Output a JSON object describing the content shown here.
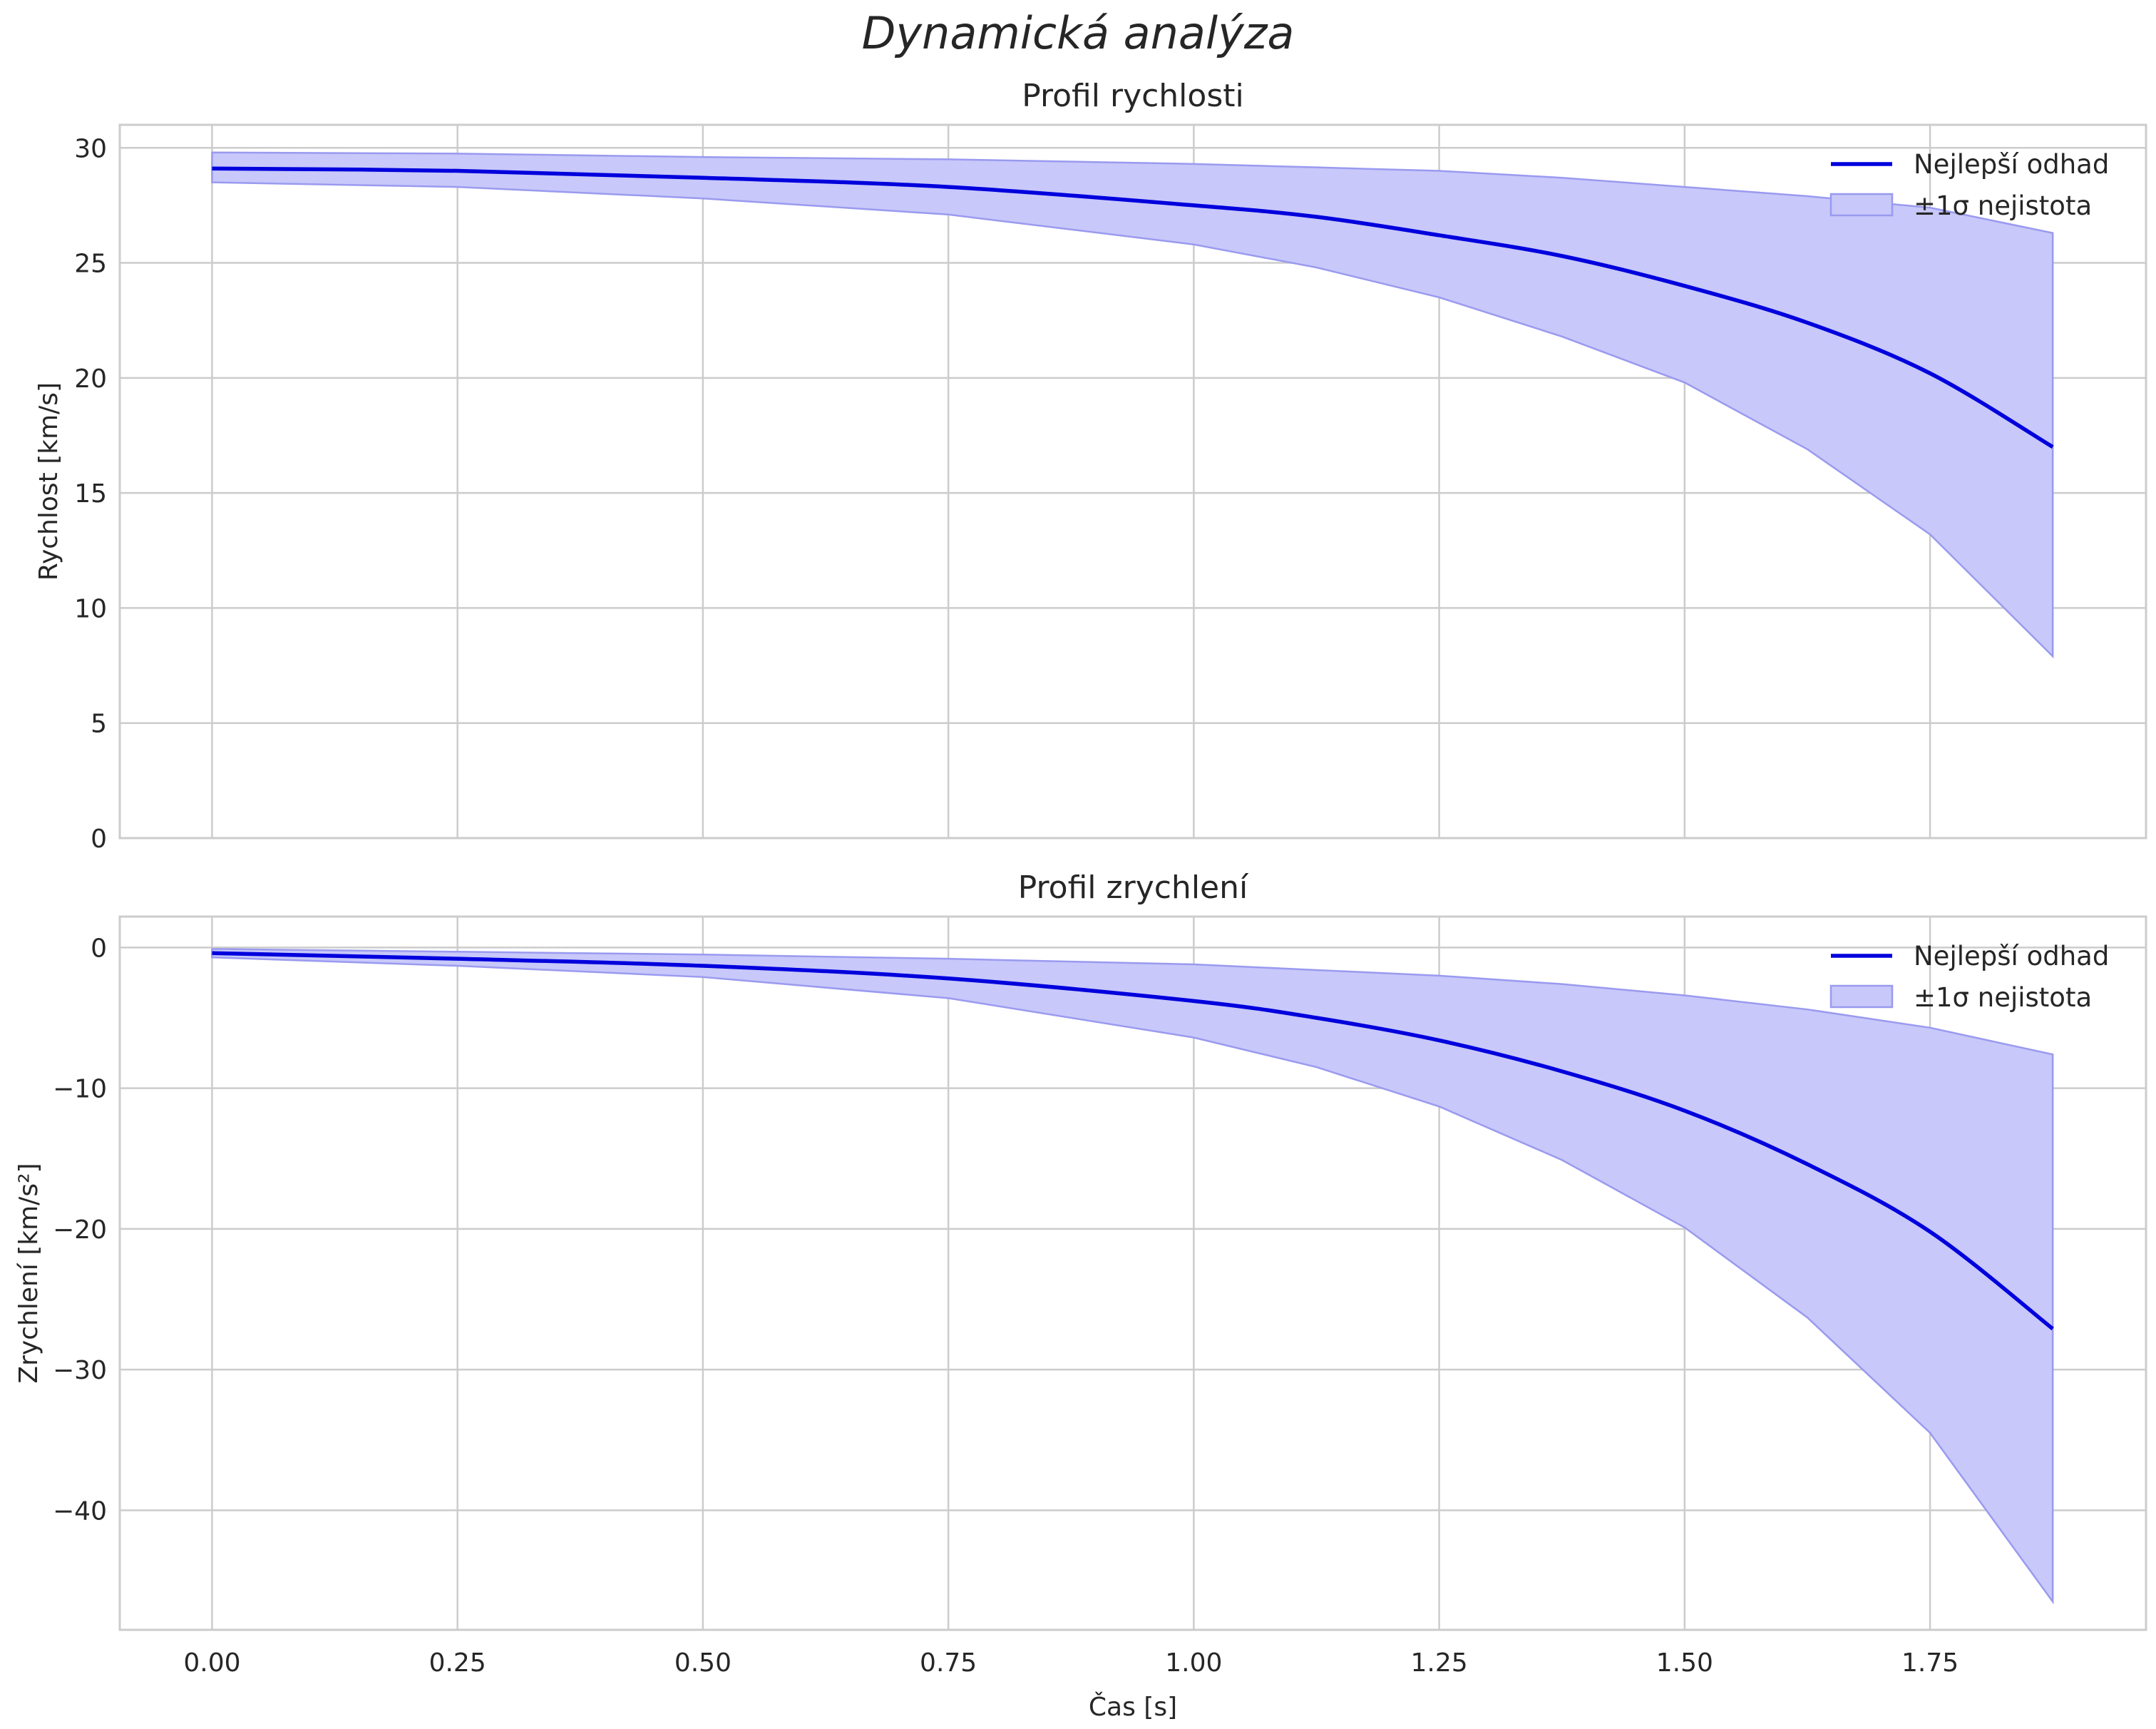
{
  "figure": {
    "suptitle": "Dynamická analýza"
  },
  "colors": {
    "line": "#0000dd",
    "band_fill": "#c8c8fa",
    "band_edge": "#9a9af0",
    "grid": "#cccccc",
    "spine": "#cccccc",
    "text": "#262626"
  },
  "chart_data": [
    {
      "type": "line",
      "title": "Profil rychlosti",
      "xlabel": "",
      "ylabel": "Rychlost [km/s]",
      "xlim": [
        -0.094,
        1.97
      ],
      "ylim": [
        0,
        31
      ],
      "grid": true,
      "legend_position": "upper right",
      "legend": [
        "Nejlepší odhad",
        "±1σ nejistota"
      ],
      "xticks": [
        "0.00",
        "0.25",
        "0.50",
        "0.75",
        "1.00",
        "1.25",
        "1.50",
        "1.75"
      ],
      "yticks": [
        "0",
        "5",
        "10",
        "15",
        "20",
        "25",
        "30"
      ],
      "x": [
        0,
        0.25,
        0.5,
        0.75,
        1.0,
        1.125,
        1.25,
        1.375,
        1.5,
        1.625,
        1.75,
        1.875
      ],
      "series": [
        {
          "name": "Nejlepší odhad",
          "values": [
            29.1,
            29.0,
            28.7,
            28.3,
            27.5,
            27.0,
            26.2,
            25.3,
            24.0,
            22.4,
            20.2,
            17.0
          ]
        },
        {
          "name": "±1σ horní mez",
          "values": [
            29.8,
            29.75,
            29.6,
            29.5,
            29.3,
            29.15,
            29.0,
            28.7,
            28.3,
            27.9,
            27.4,
            26.3
          ]
        },
        {
          "name": "±1σ dolní mez",
          "values": [
            28.5,
            28.3,
            27.8,
            27.1,
            25.8,
            24.8,
            23.5,
            21.8,
            19.8,
            16.9,
            13.2,
            7.9
          ]
        }
      ]
    },
    {
      "type": "line",
      "title": "Profil zrychlení",
      "xlabel": "Čas [s]",
      "ylabel": "Zrychlení [km/s²]",
      "xlim": [
        -0.094,
        1.97
      ],
      "ylim": [
        -48.5,
        2.2
      ],
      "grid": true,
      "legend_position": "upper right",
      "legend": [
        "Nejlepší odhad",
        "±1σ nejistota"
      ],
      "xticks": [
        "0.00",
        "0.25",
        "0.50",
        "0.75",
        "1.00",
        "1.25",
        "1.50",
        "1.75"
      ],
      "yticks": [
        "0",
        "−10",
        "−20",
        "−30",
        "−40"
      ],
      "x": [
        0,
        0.25,
        0.5,
        0.75,
        1.0,
        1.125,
        1.25,
        1.375,
        1.5,
        1.625,
        1.75,
        1.875
      ],
      "series": [
        {
          "name": "Nejlepší odhad",
          "values": [
            -0.4,
            -0.8,
            -1.3,
            -2.2,
            -3.8,
            -5.0,
            -6.6,
            -8.8,
            -11.6,
            -15.4,
            -20.2,
            -27.1
          ]
        },
        {
          "name": "±1σ horní mez",
          "values": [
            -0.1,
            -0.3,
            -0.5,
            -0.8,
            -1.2,
            -1.6,
            -2.0,
            -2.6,
            -3.4,
            -4.4,
            -5.7,
            -7.6
          ]
        },
        {
          "name": "±1σ dolní mez",
          "values": [
            -0.7,
            -1.3,
            -2.1,
            -3.6,
            -6.4,
            -8.5,
            -11.3,
            -15.1,
            -19.9,
            -26.3,
            -34.5,
            -46.5
          ]
        }
      ]
    }
  ]
}
